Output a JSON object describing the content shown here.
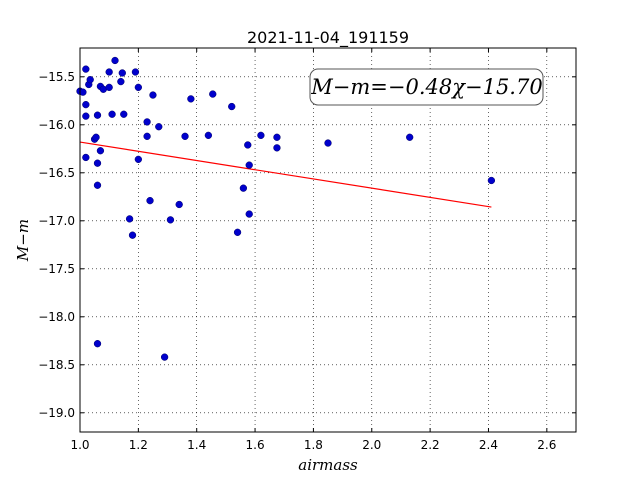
{
  "chart_data": {
    "type": "scatter",
    "title": "2021-11-04_191159",
    "xlabel": "airmass",
    "ylabel": "M−m",
    "annotation": "M−m=−0.48χ−15.70",
    "xlim": [
      1.0,
      2.7
    ],
    "ylim": [
      -19.2,
      -15.2
    ],
    "xticks": [
      1.0,
      1.2,
      1.4,
      1.6,
      1.8,
      2.0,
      2.2,
      2.4,
      2.6
    ],
    "xtick_labels": [
      "1.0",
      "1.2",
      "1.4",
      "1.6",
      "1.8",
      "2.0",
      "2.2",
      "2.4",
      "2.6"
    ],
    "yticks": [
      -15.5,
      -16.0,
      -16.5,
      -17.0,
      -17.5,
      -18.0,
      -18.5,
      -19.0
    ],
    "ytick_labels": [
      "−15.5",
      "−16.0",
      "−16.5",
      "−17.0",
      "−17.5",
      "−18.0",
      "−18.5",
      "−19.0"
    ],
    "grid": true,
    "marker_color": "#0000cc",
    "fit_color": "#ff0000",
    "fit_line": {
      "slope": -0.48,
      "intercept": -15.7,
      "x": [
        1.0,
        2.41
      ]
    },
    "points": [
      [
        1.0,
        -15.65
      ],
      [
        1.01,
        -15.66
      ],
      [
        1.02,
        -15.42
      ],
      [
        1.03,
        -15.58
      ],
      [
        1.035,
        -15.53
      ],
      [
        1.02,
        -15.79
      ],
      [
        1.02,
        -15.91
      ],
      [
        1.02,
        -16.34
      ],
      [
        1.05,
        -16.15
      ],
      [
        1.055,
        -16.13
      ],
      [
        1.06,
        -15.9
      ],
      [
        1.07,
        -15.6
      ],
      [
        1.08,
        -15.63
      ],
      [
        1.1,
        -15.61
      ],
      [
        1.1,
        -15.45
      ],
      [
        1.12,
        -15.33
      ],
      [
        1.14,
        -15.55
      ],
      [
        1.145,
        -15.46
      ],
      [
        1.15,
        -15.89
      ],
      [
        1.11,
        -15.89
      ],
      [
        1.07,
        -16.27
      ],
      [
        1.06,
        -16.4
      ],
      [
        1.06,
        -16.63
      ],
      [
        1.19,
        -15.45
      ],
      [
        1.2,
        -15.61
      ],
      [
        1.23,
        -15.97
      ],
      [
        1.23,
        -16.12
      ],
      [
        1.25,
        -15.69
      ],
      [
        1.27,
        -16.02
      ],
      [
        1.2,
        -16.36
      ],
      [
        1.17,
        -16.98
      ],
      [
        1.18,
        -17.15
      ],
      [
        1.24,
        -16.79
      ],
      [
        1.31,
        -16.99
      ],
      [
        1.34,
        -16.83
      ],
      [
        1.36,
        -16.12
      ],
      [
        1.38,
        -15.73
      ],
      [
        1.44,
        -16.11
      ],
      [
        1.455,
        -15.68
      ],
      [
        1.52,
        -15.81
      ],
      [
        1.54,
        -17.12
      ],
      [
        1.56,
        -16.66
      ],
      [
        1.58,
        -16.42
      ],
      [
        1.575,
        -16.21
      ],
      [
        1.58,
        -16.93
      ],
      [
        1.62,
        -16.11
      ],
      [
        1.675,
        -16.13
      ],
      [
        1.675,
        -16.24
      ],
      [
        1.85,
        -16.19
      ],
      [
        2.13,
        -16.13
      ],
      [
        2.41,
        -16.58
      ],
      [
        1.06,
        -18.28
      ],
      [
        1.29,
        -18.42
      ]
    ]
  }
}
